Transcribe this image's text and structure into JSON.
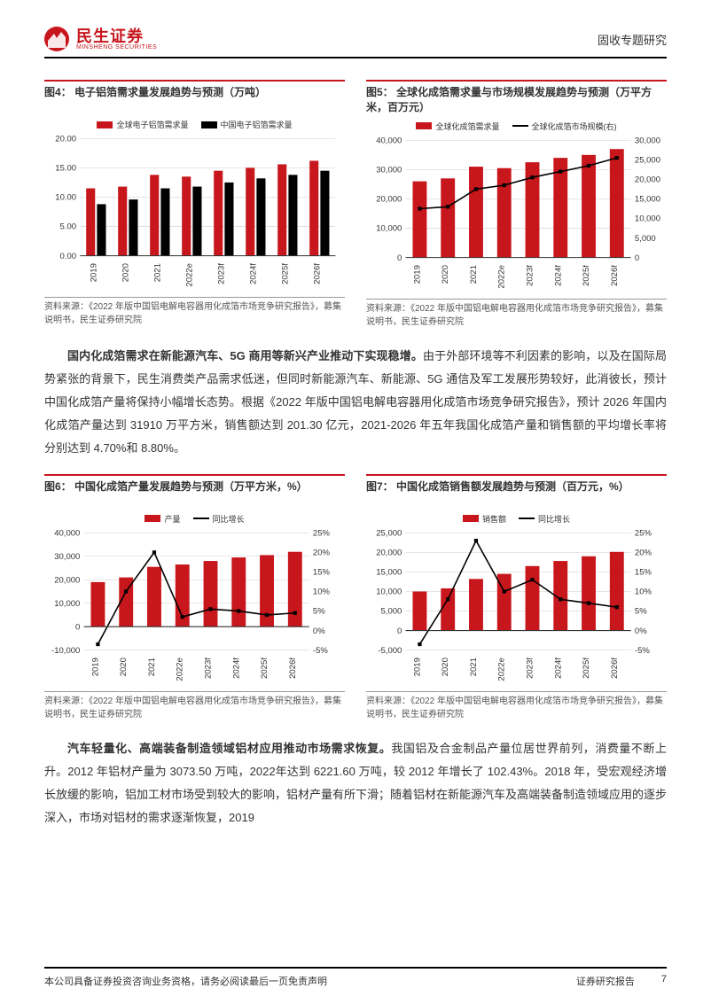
{
  "header": {
    "logo_cn": "民生证券",
    "logo_en": "MINSHENG SECURITIES",
    "doc_type": "固收专题研究"
  },
  "colors": {
    "brand_red": "#c8161d",
    "dark_red": "#a01217",
    "black": "#000000",
    "grid": "#cccccc",
    "text": "#333333"
  },
  "chart4": {
    "title": "图4： 电子铝箔需求量发展趋势与预测（万吨）",
    "type": "bar",
    "legend": [
      "全球电子铝箔需求量",
      "中国电子铝箔需求量"
    ],
    "legend_colors": [
      "#c8161d",
      "#000000"
    ],
    "categories": [
      "2019",
      "2020",
      "2021",
      "2022e",
      "2023f",
      "2024f",
      "2025f",
      "2026f"
    ],
    "series1": [
      11.5,
      11.8,
      13.8,
      13.5,
      14.5,
      15.0,
      15.6,
      16.2
    ],
    "series2": [
      8.8,
      9.6,
      11.5,
      11.8,
      12.5,
      13.2,
      13.8,
      14.5
    ],
    "ylim": [
      0,
      20
    ],
    "ytick_step": 5,
    "bar_colors": [
      "#c8161d",
      "#000000"
    ],
    "grid_color": "#cccccc",
    "axis_fontsize": 9,
    "source": "资料来源：《2022 年版中国铝电解电容器用化成箔市场竞争研究报告》，募集说明书，民生证券研究院"
  },
  "chart5": {
    "title": "图5： 全球化成箔需求量与市场规模发展趋势与预测（万平方米，百万元）",
    "type": "bar+line",
    "legend": [
      "全球化成箔需求量",
      "全球化成箔市场规模(右)"
    ],
    "legend_types": [
      "bar",
      "line"
    ],
    "legend_colors": [
      "#c8161d",
      "#000000"
    ],
    "categories": [
      "2019",
      "2020",
      "2021",
      "2022e",
      "2023f",
      "2024f",
      "2025f",
      "2026f"
    ],
    "bar_values": [
      26000,
      27000,
      31000,
      30500,
      32500,
      34000,
      35000,
      37000
    ],
    "line_values": [
      12500,
      13000,
      17500,
      18500,
      20500,
      22000,
      23500,
      25500
    ],
    "ylim_left": [
      0,
      40000
    ],
    "ytick_left": 10000,
    "ylim_right": [
      0,
      30000
    ],
    "ytick_right": 5000,
    "bar_color": "#c8161d",
    "line_color": "#000000",
    "grid_color": "#cccccc",
    "axis_fontsize": 9,
    "source": "资料来源：《2022 年版中国铝电解电容器用化成箔市场竞争研究报告》，募集说明书，民生证券研究院"
  },
  "para1": {
    "bold": "国内化成箔需求在新能源汽车、5G 商用等新兴产业推动下实现稳增。",
    "text": "由于外部环境等不利因素的影响，以及在国际局势紧张的背景下，民生消费类产品需求低迷，但同时新能源汽车、新能源、5G 通信及军工发展形势较好，此消彼长，预计中国化成箔产量将保持小幅增长态势。根据《2022 年版中国铝电解电容器用化成箔市场竞争研究报告》，预计 2026 年国内化成箔产量达到 31910 万平方米，销售额达到 201.30 亿元，2021-2026 年五年我国化成箔产量和销售额的平均增长率将分别达到 4.70%和 8.80%。"
  },
  "chart6": {
    "title": "图6： 中国化成箔产量发展趋势与预测（万平方米，%）",
    "type": "bar+line",
    "legend": [
      "产量",
      "同比增长"
    ],
    "legend_types": [
      "bar",
      "line"
    ],
    "legend_colors": [
      "#c8161d",
      "#000000"
    ],
    "categories": [
      "2019",
      "2020",
      "2021",
      "2022e",
      "2023f",
      "2024f",
      "2025f",
      "2026f"
    ],
    "bar_values": [
      19000,
      21000,
      25500,
      26500,
      28000,
      29500,
      30500,
      31910
    ],
    "line_values": [
      -3.5,
      10,
      20,
      3.5,
      5.5,
      5,
      4,
      4.5
    ],
    "ylim_left": [
      -10000,
      40000
    ],
    "yticks_left": [
      -10000,
      0,
      10000,
      20000,
      30000,
      40000
    ],
    "ylim_right": [
      -5,
      25
    ],
    "yticks_right": [
      -5,
      0,
      5,
      10,
      15,
      20,
      25
    ],
    "bar_color": "#c8161d",
    "line_color": "#000000",
    "grid_color": "#cccccc",
    "axis_fontsize": 9,
    "source": "资料来源：《2022 年版中国铝电解电容器用化成箔市场竞争研究报告》，募集说明书，民生证券研究院"
  },
  "chart7": {
    "title": "图7： 中国化成箔销售额发展趋势与预测（百万元，%）",
    "type": "bar+line",
    "legend": [
      "销售额",
      "同比增长"
    ],
    "legend_types": [
      "bar",
      "line"
    ],
    "legend_colors": [
      "#c8161d",
      "#000000"
    ],
    "categories": [
      "2019",
      "2020",
      "2021",
      "2022e",
      "2023f",
      "2024f",
      "2025f",
      "2026f"
    ],
    "bar_values": [
      10000,
      10800,
      13200,
      14500,
      16500,
      17800,
      19000,
      20130
    ],
    "line_values": [
      -3.5,
      8,
      23,
      10,
      13,
      8,
      7,
      6
    ],
    "ylim_left": [
      -5000,
      25000
    ],
    "yticks_left": [
      -5000,
      0,
      5000,
      10000,
      15000,
      20000,
      25000
    ],
    "ylim_right": [
      -5,
      25
    ],
    "yticks_right": [
      -5,
      0,
      5,
      10,
      15,
      20,
      25
    ],
    "bar_color": "#c8161d",
    "line_color": "#000000",
    "grid_color": "#cccccc",
    "axis_fontsize": 9,
    "source": "资料来源：《2022 年版中国铝电解电容器用化成箔市场竞争研究报告》，募集说明书，民生证券研究院"
  },
  "para2": {
    "bold": "汽车轻量化、高端装备制造领域铝材应用推动市场需求恢复。",
    "text": "我国铝及合金制品产量位居世界前列，消费量不断上升。2012 年铝材产量为 3073.50 万吨，2022年达到 6221.60 万吨，较 2012 年增长了 102.43%。2018 年，受宏观经济增长放缓的影响，铝加工材市场受到较大的影响，铝材产量有所下滑；随着铝材在新能源汽车及高端装备制造领域应用的逐步深入，市场对铝材的需求逐渐恢复，2019"
  },
  "footer": {
    "left": "本公司具备证券投资咨询业务资格，请务必阅读最后一页免责声明",
    "right1": "证券研究报告",
    "right2": "7"
  }
}
